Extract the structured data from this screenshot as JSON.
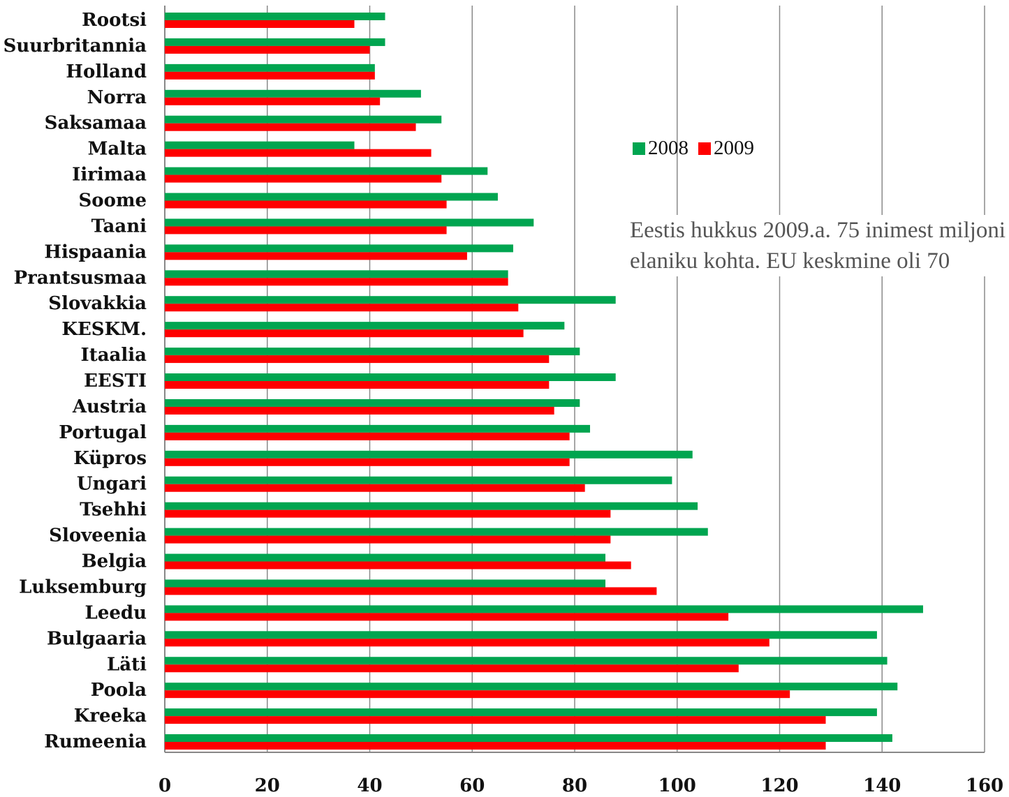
{
  "chart_data": {
    "type": "bar",
    "orientation": "horizontal",
    "categories": [
      "Rootsi",
      "Suurbritannia",
      "Holland",
      "Norra",
      "Saksamaa",
      "Malta",
      "Iirimaa",
      "Soome",
      "Taani",
      "Hispaania",
      "Prantsusmaa",
      "Slovakkia",
      "KESKM.",
      "Itaalia",
      "EESTI",
      "Austria",
      "Portugal",
      "Küpros",
      "Ungari",
      "Tsehhi",
      "Sloveenia",
      "Belgia",
      "Luksemburg",
      "Leedu",
      "Bulgaaria",
      "Läti",
      "Poola",
      "Kreeka",
      "Rumeenia"
    ],
    "series": [
      {
        "name": "2008",
        "color": "#00A550",
        "values": [
          43,
          43,
          41,
          50,
          54,
          37,
          63,
          65,
          72,
          68,
          67,
          88,
          78,
          81,
          88,
          81,
          83,
          103,
          99,
          104,
          106,
          86,
          86,
          148,
          139,
          141,
          143,
          139,
          142
        ]
      },
      {
        "name": "2009",
        "color": "#FF0000",
        "values": [
          37,
          40,
          41,
          42,
          49,
          52,
          54,
          55,
          55,
          59,
          67,
          69,
          70,
          75,
          75,
          76,
          79,
          79,
          82,
          87,
          87,
          91,
          96,
          110,
          118,
          112,
          122,
          129,
          129
        ]
      }
    ],
    "xlim": [
      0,
      160
    ],
    "xticks": [
      0,
      20,
      40,
      60,
      80,
      100,
      120,
      140,
      160
    ],
    "grid": "vertical",
    "legend_position": "right",
    "annotation": "Eestis hukkus 2009.a. 75 inimest miljoni elaniku kohta. EU keskmine oli 70"
  }
}
